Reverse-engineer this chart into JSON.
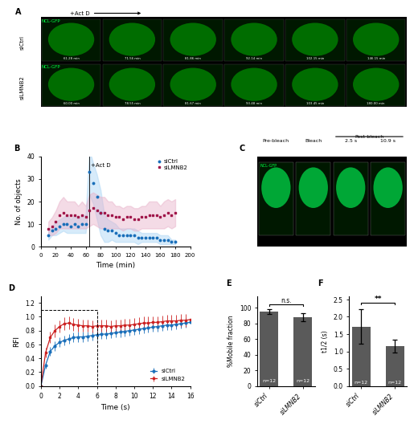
{
  "panel_B": {
    "xlabel": "Time (min)",
    "ylabel": "No. of objects",
    "xlim": [
      0,
      200
    ],
    "ylim": [
      0,
      40
    ],
    "xticks": [
      0,
      20,
      40,
      60,
      80,
      100,
      120,
      140,
      160,
      180,
      200
    ],
    "yticks": [
      0,
      10,
      20,
      30,
      40
    ],
    "act_d_x": 65,
    "siCtrl_color": "#1a6fba",
    "siCtrl_err_color": "#a8d4f5",
    "siLMNB2_color": "#a0174a",
    "siLMNB2_err_color": "#e8b0c8",
    "legend_labels": [
      "siCtrl",
      "siLMNB2"
    ],
    "siCtrl_times": [
      10,
      15,
      20,
      25,
      30,
      35,
      40,
      45,
      50,
      55,
      60,
      65,
      70,
      75,
      80,
      85,
      90,
      95,
      100,
      105,
      110,
      115,
      120,
      125,
      130,
      135,
      140,
      145,
      150,
      155,
      160,
      165,
      170,
      175,
      180
    ],
    "siCtrl_vals": [
      5,
      7,
      8,
      9,
      10,
      10,
      9,
      10,
      9,
      10,
      10,
      33,
      28,
      22,
      15,
      8,
      7,
      7,
      6,
      5,
      5,
      5,
      5,
      5,
      4,
      4,
      4,
      4,
      4,
      4,
      3,
      3,
      3,
      2,
      2
    ],
    "siCtrl_errs": [
      2,
      2,
      3,
      3,
      3,
      4,
      3,
      4,
      3,
      4,
      4,
      10,
      9,
      10,
      10,
      6,
      5,
      4,
      4,
      3,
      3,
      3,
      3,
      3,
      3,
      2,
      2,
      2,
      2,
      2,
      2,
      2,
      2,
      1,
      1
    ],
    "siLMNB2_times": [
      10,
      15,
      20,
      25,
      30,
      35,
      40,
      45,
      50,
      55,
      60,
      65,
      70,
      75,
      80,
      85,
      90,
      95,
      100,
      105,
      110,
      115,
      120,
      125,
      130,
      135,
      140,
      145,
      150,
      155,
      160,
      165,
      170,
      175,
      180
    ],
    "siLMNB2_vals": [
      8,
      9,
      11,
      14,
      15,
      14,
      14,
      14,
      13,
      14,
      13,
      16,
      17,
      16,
      15,
      15,
      14,
      14,
      13,
      13,
      12,
      13,
      13,
      12,
      12,
      13,
      13,
      14,
      14,
      14,
      13,
      14,
      15,
      14,
      15
    ],
    "siLMNB2_errs": [
      3,
      4,
      5,
      6,
      7,
      6,
      6,
      6,
      5,
      6,
      5,
      7,
      7,
      7,
      7,
      7,
      6,
      6,
      5,
      5,
      5,
      5,
      5,
      5,
      5,
      5,
      5,
      6,
      6,
      6,
      5,
      6,
      6,
      6,
      6
    ]
  },
  "panel_D": {
    "xlabel": "Time (s)",
    "ylabel": "RFI",
    "xlim": [
      0,
      16
    ],
    "ylim": [
      0,
      1.3
    ],
    "xticks": [
      0,
      2,
      4,
      6,
      8,
      10,
      12,
      14,
      16
    ],
    "yticks": [
      0,
      0.2,
      0.4,
      0.6,
      0.8,
      1.0,
      1.2
    ],
    "siCtrl_color": "#1a6fba",
    "siLMNB2_color": "#cc2222",
    "siCtrl_times": [
      0,
      0.5,
      1,
      1.5,
      2,
      2.5,
      3,
      3.5,
      4,
      4.5,
      5,
      5.5,
      6,
      6.5,
      7,
      7.5,
      8,
      8.5,
      9,
      9.5,
      10,
      10.5,
      11,
      11.5,
      12,
      12.5,
      13,
      13.5,
      14,
      14.5,
      15,
      15.5,
      16
    ],
    "siCtrl_vals": [
      0,
      0.3,
      0.5,
      0.58,
      0.63,
      0.66,
      0.68,
      0.7,
      0.71,
      0.71,
      0.72,
      0.73,
      0.74,
      0.75,
      0.75,
      0.76,
      0.77,
      0.78,
      0.79,
      0.8,
      0.81,
      0.82,
      0.83,
      0.84,
      0.85,
      0.86,
      0.87,
      0.88,
      0.88,
      0.89,
      0.9,
      0.91,
      0.92
    ],
    "siCtrl_errs": [
      0,
      0.05,
      0.06,
      0.07,
      0.07,
      0.07,
      0.07,
      0.07,
      0.07,
      0.07,
      0.07,
      0.07,
      0.07,
      0.07,
      0.07,
      0.07,
      0.07,
      0.07,
      0.07,
      0.07,
      0.07,
      0.07,
      0.07,
      0.07,
      0.07,
      0.07,
      0.07,
      0.07,
      0.07,
      0.07,
      0.07,
      0.07,
      0.07
    ],
    "siLMNB2_times": [
      0,
      0.5,
      1,
      1.5,
      2,
      2.5,
      3,
      3.5,
      4,
      4.5,
      5,
      5.5,
      6,
      6.5,
      7,
      7.5,
      8,
      8.5,
      9,
      9.5,
      10,
      10.5,
      11,
      11.5,
      12,
      12.5,
      13,
      13.5,
      14,
      14.5,
      15,
      15.5,
      16
    ],
    "siLMNB2_vals": [
      0,
      0.48,
      0.7,
      0.8,
      0.86,
      0.9,
      0.91,
      0.89,
      0.88,
      0.87,
      0.87,
      0.86,
      0.87,
      0.87,
      0.87,
      0.86,
      0.87,
      0.87,
      0.88,
      0.88,
      0.89,
      0.9,
      0.91,
      0.91,
      0.92,
      0.92,
      0.93,
      0.94,
      0.94,
      0.94,
      0.95,
      0.95,
      0.96
    ],
    "siLMNB2_errs": [
      0,
      0.07,
      0.08,
      0.09,
      0.09,
      0.09,
      0.09,
      0.09,
      0.09,
      0.09,
      0.09,
      0.09,
      0.09,
      0.09,
      0.09,
      0.09,
      0.09,
      0.09,
      0.09,
      0.09,
      0.09,
      0.09,
      0.09,
      0.09,
      0.09,
      0.09,
      0.09,
      0.09,
      0.09,
      0.09,
      0.09,
      0.09,
      0.09
    ]
  },
  "panel_E": {
    "ylabel": "%Mobile fraction",
    "categories": [
      "siCtrl",
      "siLMNB2"
    ],
    "values": [
      95,
      88
    ],
    "errors": [
      3,
      5
    ],
    "bar_color": "#5a5a5a",
    "ylim": [
      0,
      115
    ],
    "yticks": [
      0,
      20,
      40,
      60,
      80,
      100
    ],
    "n_labels": [
      "n=12",
      "n=12"
    ],
    "significance": "n.s."
  },
  "panel_F": {
    "ylabel": "t1/2 (s)",
    "categories": [
      "siCtrl",
      "siLMNB2"
    ],
    "values": [
      1.72,
      1.15
    ],
    "errors": [
      0.5,
      0.18
    ],
    "bar_color": "#5a5a5a",
    "ylim": [
      0,
      2.6
    ],
    "yticks": [
      0.0,
      0.5,
      1.0,
      1.5,
      2.0,
      2.5
    ],
    "n_labels": [
      "n=12",
      "n=12"
    ],
    "significance": "**"
  },
  "colors": {
    "image_bg": "#000000",
    "cell_green_dark": "#007700",
    "cell_green": "#00cc00",
    "text_green": "#00ff44"
  }
}
